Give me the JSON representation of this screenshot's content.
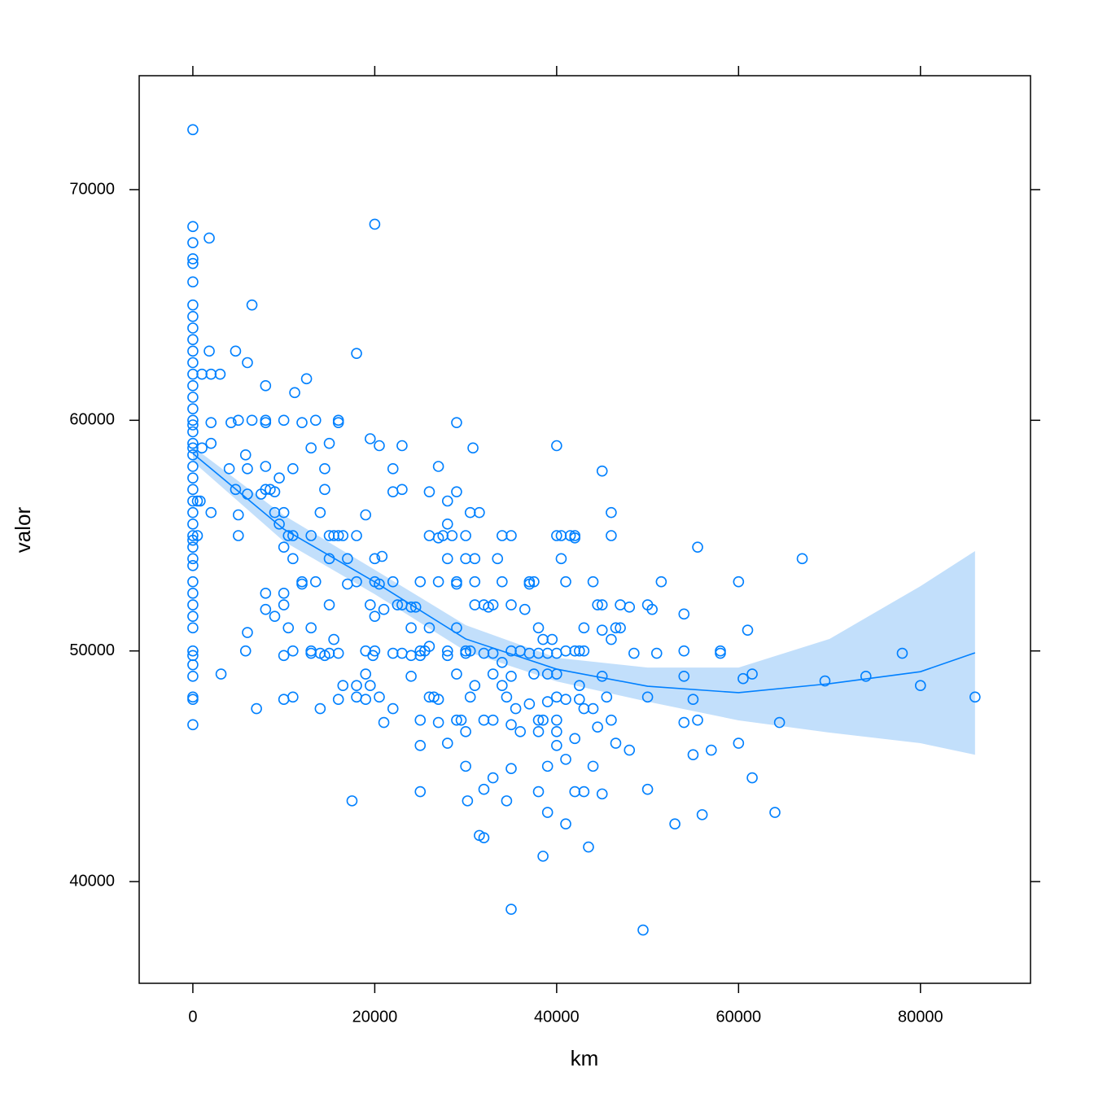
{
  "chart_data": {
    "type": "scatter",
    "xlabel": "km",
    "ylabel": "valor",
    "color": "#0080ff",
    "band_color": "#c2dffb",
    "xlim": [
      -5900,
      92100
    ],
    "ylim": [
      35590,
      74940
    ],
    "xticks": [
      0,
      20000,
      40000,
      60000,
      80000
    ],
    "yticks": [
      40000,
      50000,
      60000,
      70000
    ],
    "x": [
      0,
      0,
      0,
      0,
      0,
      0,
      0,
      0,
      0,
      0,
      0,
      0,
      0,
      0,
      0,
      0,
      0,
      0,
      0,
      0,
      0,
      0,
      0,
      0,
      0,
      0,
      0,
      0,
      0,
      0,
      0,
      0,
      0,
      0,
      0,
      0,
      0,
      0,
      0,
      0,
      0,
      0,
      0,
      0,
      0,
      1800,
      1800,
      2000,
      3000,
      1000,
      2000,
      2000,
      1000,
      500,
      800,
      2000,
      500,
      3100,
      4700,
      5000,
      4200,
      4000,
      4700,
      5000,
      5000,
      6000,
      6500,
      5800,
      6000,
      6000,
      6000,
      5800,
      7000,
      6500,
      7500,
      8000,
      8000,
      8000,
      8000,
      8000,
      8500,
      9000,
      9000,
      9500,
      9500,
      10000,
      10000,
      10000,
      10500,
      11000,
      11000,
      11000,
      11200,
      12000,
      12500,
      13000,
      13500,
      12000,
      12000,
      13000,
      13500,
      8000,
      8000,
      9000,
      10000,
      10000,
      10500,
      11000,
      10000,
      10000,
      11000,
      13000,
      13000,
      13000,
      14000,
      14000,
      14500,
      15000,
      14000,
      14500,
      14500,
      15000,
      15000,
      15500,
      15000,
      15000,
      15500,
      16000,
      16000,
      16000,
      16500,
      16000,
      16000,
      16500,
      17000,
      17000,
      17500,
      18000,
      18000,
      18000,
      18000,
      18000,
      19000,
      19500,
      19000,
      19000,
      19000,
      19500,
      19500,
      19800,
      20000,
      20000,
      20000,
      20000,
      20000,
      20500,
      20500,
      20500,
      20800,
      21000,
      21000,
      22000,
      22000,
      22000,
      22000,
      22000,
      22500,
      23000,
      23000,
      23000,
      23000,
      24000,
      24000,
      24000,
      24000,
      24500,
      25000,
      25000,
      25000,
      25000,
      25000,
      25000,
      25500,
      26000,
      26000,
      26000,
      26000,
      26000,
      26500,
      27000,
      27000,
      27000,
      27000,
      27000,
      27500,
      28000,
      28000,
      28000,
      28000,
      28000,
      28000,
      28500,
      29000,
      29000,
      29000,
      29000,
      29000,
      29000,
      29000,
      29500,
      30000,
      30000,
      30000,
      30000,
      30000,
      30000,
      30200,
      30500,
      30500,
      30500,
      30800,
      31000,
      31000,
      31000,
      31000,
      31500,
      31500,
      32000,
      32000,
      32000,
      32000,
      32000,
      32500,
      33000,
      33000,
      33000,
      33000,
      33000,
      33500,
      34000,
      34000,
      34000,
      34000,
      34500,
      34500,
      35000,
      35000,
      35000,
      35000,
      35000,
      35000,
      35000,
      35500,
      36000,
      36000,
      36500,
      37000,
      37000,
      37000,
      37000,
      37500,
      37500,
      38000,
      38000,
      38000,
      38000,
      38000,
      38500,
      38500,
      38500,
      39000,
      39000,
      39000,
      39000,
      39000,
      39500,
      40000,
      40000,
      40000,
      40000,
      40000,
      40000,
      40000,
      40000,
      40500,
      40500,
      41000,
      41000,
      41000,
      41000,
      41000,
      41500,
      42000,
      42000,
      42000,
      42000,
      42000,
      42500,
      42500,
      42500,
      43000,
      43000,
      43000,
      43000,
      43500,
      44000,
      44000,
      44000,
      44500,
      44500,
      45000,
      45000,
      45000,
      45000,
      45000,
      45500,
      46000,
      46000,
      46000,
      46000,
      46500,
      46500,
      47000,
      47000,
      48000,
      48000,
      48500,
      49500,
      50000,
      50000,
      50000,
      50500,
      51000,
      51500,
      53000,
      54000,
      54000,
      54000,
      54000,
      55000,
      55000,
      55500,
      55500,
      56000,
      57000,
      58000,
      58000,
      60000,
      60000,
      60500,
      61000,
      61500,
      61500,
      64000,
      64500,
      67000,
      69500,
      74000,
      78000,
      80000,
      86000
    ],
    "values": [
      72600,
      68400,
      67700,
      67000,
      66800,
      66000,
      65000,
      64500,
      64000,
      63500,
      63000,
      62500,
      62000,
      61500,
      61000,
      60500,
      60000,
      59800,
      59500,
      59000,
      58800,
      58500,
      58000,
      57500,
      57000,
      56500,
      56000,
      55500,
      55000,
      54800,
      54500,
      54000,
      53700,
      53000,
      52500,
      52000,
      51500,
      51000,
      50000,
      49800,
      49400,
      48900,
      48000,
      47900,
      46800,
      67900,
      63000,
      62000,
      62000,
      62000,
      59900,
      59000,
      58800,
      56500,
      56500,
      56000,
      55000,
      49000,
      63000,
      60000,
      59900,
      57900,
      57000,
      55900,
      55000,
      62500,
      65000,
      58500,
      57900,
      56800,
      50800,
      50000,
      47500,
      60000,
      56800,
      61500,
      60000,
      59900,
      58000,
      57000,
      57000,
      56900,
      56000,
      57500,
      55500,
      60000,
      56000,
      54500,
      55000,
      55000,
      54000,
      57900,
      61200,
      59900,
      61800,
      58800,
      60000,
      53000,
      52900,
      55000,
      53000,
      52500,
      51800,
      51500,
      52500,
      52000,
      51000,
      50000,
      49800,
      47900,
      48000,
      51000,
      50000,
      49900,
      49900,
      47500,
      49800,
      49900,
      56000,
      57900,
      57000,
      59000,
      55000,
      55000,
      54000,
      52000,
      50500,
      60000,
      59900,
      55000,
      55000,
      49900,
      47900,
      48500,
      54000,
      52900,
      43500,
      62900,
      55000,
      53000,
      48500,
      48000,
      55900,
      59200,
      50000,
      49000,
      47900,
      52000,
      48500,
      49800,
      68500,
      54000,
      51500,
      50000,
      53000,
      58900,
      48000,
      52900,
      54100,
      46900,
      51800,
      57900,
      56900,
      53000,
      49900,
      47500,
      52000,
      58900,
      57000,
      52000,
      49900,
      51900,
      51000,
      48900,
      49800,
      51900,
      53000,
      50000,
      49800,
      47000,
      45900,
      43900,
      50000,
      56900,
      55000,
      51000,
      48000,
      50200,
      48000,
      58000,
      54900,
      53000,
      47900,
      46900,
      55000,
      56500,
      55500,
      54000,
      50000,
      49800,
      46000,
      55000,
      59900,
      56900,
      53000,
      52900,
      51000,
      49000,
      47000,
      47000,
      55000,
      54000,
      50000,
      49900,
      46500,
      45000,
      43500,
      56000,
      50000,
      48000,
      58800,
      54000,
      53000,
      52000,
      48500,
      56000,
      42000,
      52000,
      49900,
      47000,
      44000,
      41900,
      51900,
      52000,
      49900,
      49000,
      47000,
      44500,
      54000,
      55000,
      53000,
      49500,
      48500,
      48000,
      43500,
      55000,
      52000,
      50000,
      48900,
      46800,
      44900,
      38800,
      47500,
      50000,
      46500,
      51800,
      53000,
      52900,
      49900,
      47700,
      53000,
      49000,
      51000,
      49900,
      47000,
      46500,
      43900,
      50500,
      47000,
      41100,
      49900,
      49000,
      47800,
      45000,
      43000,
      50500,
      58900,
      55000,
      49900,
      49000,
      47000,
      46500,
      45900,
      48000,
      54000,
      55000,
      53000,
      50000,
      47900,
      45300,
      42500,
      55000,
      55000,
      54900,
      50000,
      46200,
      43900,
      50000,
      48500,
      47900,
      51000,
      50000,
      47500,
      43900,
      41500,
      53000,
      47500,
      45000,
      52000,
      46700,
      57800,
      52000,
      50900,
      48900,
      43800,
      48000,
      56000,
      55000,
      50500,
      47000,
      51000,
      46000,
      52000,
      51000,
      51900,
      45700,
      49900,
      37900,
      52000,
      48000,
      44000,
      51800,
      49900,
      53000,
      42500,
      51600,
      50000,
      48900,
      46900,
      47900,
      45500,
      54500,
      47000,
      42900,
      45700,
      50000,
      49900,
      53000,
      46000,
      48800,
      50900,
      44500,
      49000,
      43000,
      46900,
      54000,
      48700,
      48900,
      49900,
      48500,
      48000
    ],
    "smooth": {
      "x": [
        0,
        10000,
        20000,
        30000,
        40000,
        50000,
        60000,
        70000,
        80000,
        86000
      ],
      "values": [
        58560,
        55280,
        52990,
        50520,
        49210,
        48470,
        48190,
        48580,
        49100,
        49920
      ],
      "lower": [
        58210,
        54750,
        52460,
        49990,
        48680,
        47800,
        46990,
        46460,
        46000,
        45500
      ],
      "upper": [
        58850,
        55880,
        53520,
        51120,
        49700,
        49280,
        49280,
        50520,
        52810,
        54330
      ]
    }
  }
}
